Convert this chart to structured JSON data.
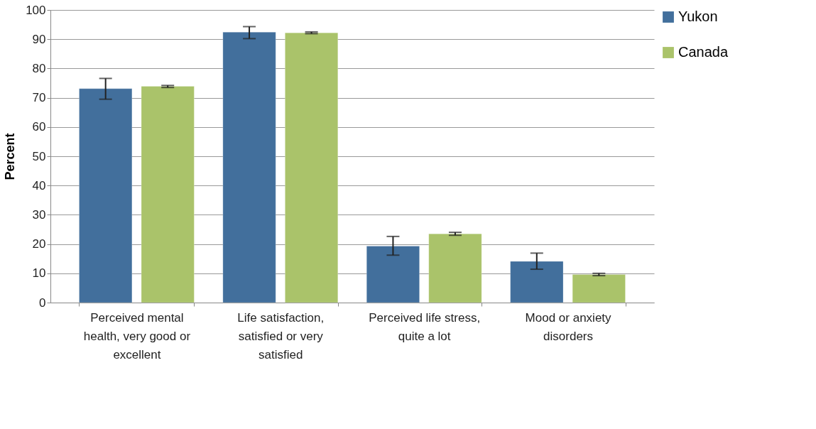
{
  "chart_data": {
    "type": "bar",
    "ylabel": "Percent",
    "categories": [
      "Perceived mental health, very good or excellent",
      "Life satisfaction, satisfied or very satisfied",
      "Perceived life stress, quite a lot",
      "Mood or anxiety disorders"
    ],
    "series": [
      {
        "name": "Yukon",
        "color": "#426f9c",
        "values": [
          73.1,
          92.4,
          19.3,
          14.1
        ],
        "errors": [
          [
            69.5,
            76.6
          ],
          [
            90.2,
            94.3
          ],
          [
            16.2,
            22.6
          ],
          [
            11.4,
            16.9
          ]
        ]
      },
      {
        "name": "Canada",
        "color": "#aac36a",
        "values": [
          73.9,
          92.2,
          23.5,
          9.6
        ],
        "errors": [
          [
            73.5,
            74.2
          ],
          [
            91.9,
            92.5
          ],
          [
            23.0,
            24.0
          ],
          [
            9.2,
            10.0
          ]
        ]
      }
    ],
    "ylim": [
      0,
      100
    ],
    "yticks": [
      0,
      10,
      20,
      30,
      40,
      50,
      60,
      70,
      80,
      90,
      100
    ],
    "grid": "y",
    "legend": "right"
  }
}
